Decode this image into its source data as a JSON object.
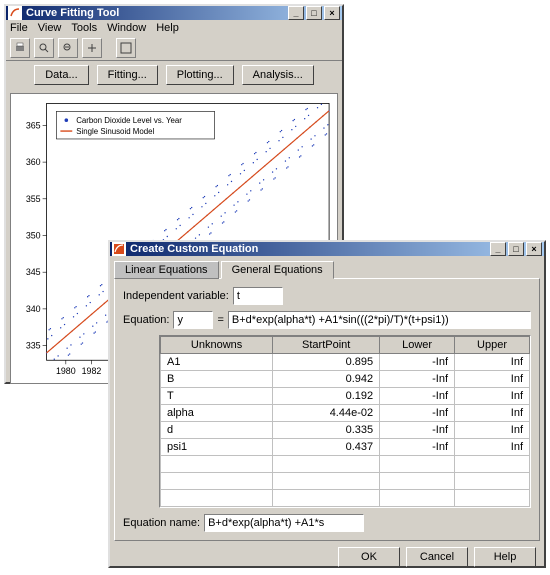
{
  "main": {
    "title": "Curve Fitting Tool",
    "menus": [
      "File",
      "View",
      "Tools",
      "Window",
      "Help"
    ],
    "toolbar_icons": [
      "print-icon",
      "zoom-in-icon",
      "zoom-out-icon",
      "pan-icon",
      "legend-icon"
    ],
    "buttons": [
      "Data...",
      "Fitting...",
      "Plotting...",
      "Analysis..."
    ],
    "chart": {
      "legend": {
        "series1": "Carbon Dioxide Level vs. Year",
        "series2": "Single Sinusoid Model",
        "marker_color": "#1f3db8",
        "line_color": "#d84a1a"
      },
      "yaxis_ticks": [
        335,
        340,
        345,
        350,
        355,
        360,
        365
      ],
      "xaxis_ticks": [
        1980,
        1982
      ],
      "ylim": [
        333,
        368
      ],
      "xlim": [
        1978.5,
        2000.5
      ],
      "grid_color": "#e8e8e8",
      "background_color": "#ffffff",
      "data_color": "#1f3db8",
      "fit_color": "#d84a1a"
    }
  },
  "dialog": {
    "title": "Create Custom Equation",
    "tabs": {
      "t1": "Linear Equations",
      "t2": "General Equations"
    },
    "indep_label": "Independent variable:",
    "indep_value": "t",
    "eq_label": "Equation:",
    "eq_lhs": "y",
    "eq_equals_rhs": "B+d*exp(alpha*t) +A1*sin(((2*pi)/T)*(t+psi1))",
    "table": {
      "headers": [
        "Unknowns",
        "StartPoint",
        "Lower",
        "Upper"
      ],
      "rows": [
        {
          "name": "A1",
          "start": "0.895",
          "lower": "-Inf",
          "upper": "Inf"
        },
        {
          "name": "B",
          "start": "0.942",
          "lower": "-Inf",
          "upper": "Inf"
        },
        {
          "name": "T",
          "start": "0.192",
          "lower": "-Inf",
          "upper": "Inf"
        },
        {
          "name": "alpha",
          "start": "4.44e-02",
          "lower": "-Inf",
          "upper": "Inf"
        },
        {
          "name": "d",
          "start": "0.335",
          "lower": "-Inf",
          "upper": "Inf"
        },
        {
          "name": "psi1",
          "start": "0.437",
          "lower": "-Inf",
          "upper": "Inf"
        }
      ]
    },
    "eqname_label": "Equation name:",
    "eqname_value": "B+d*exp(alpha*t) +A1*s",
    "buttons": {
      "ok": "OK",
      "cancel": "Cancel",
      "help": "Help"
    }
  }
}
